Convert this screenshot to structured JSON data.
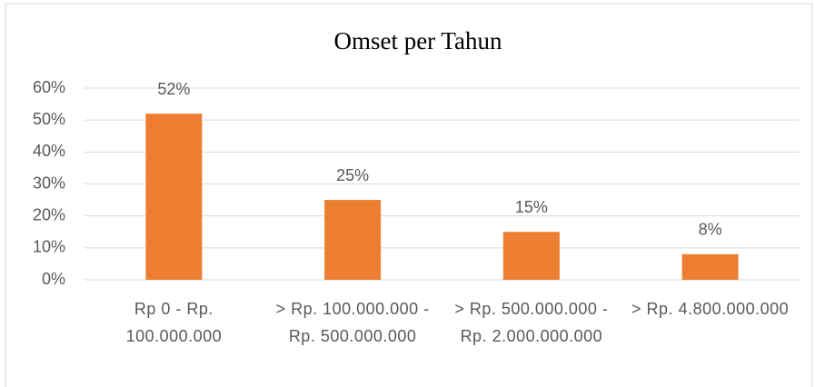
{
  "chart_data": {
    "type": "bar",
    "title": "Omset per Tahun",
    "categories": [
      "Rp 0 - Rp. 100.000.000",
      "> Rp. 100.000.000 - Rp. 500.000.000",
      "> Rp. 500.000.000 - Rp. 2.000.000.000",
      "> Rp. 4.800.000.000"
    ],
    "values": [
      52,
      25,
      15,
      8
    ],
    "value_labels": [
      "52%",
      "25%",
      "15%",
      "8%"
    ],
    "color": "#ed7d31",
    "ylim": [
      0,
      60
    ],
    "yticks": [
      {
        "value": 0,
        "label": "0%"
      },
      {
        "value": 10,
        "label": "10%"
      },
      {
        "value": 20,
        "label": "20%"
      },
      {
        "value": 30,
        "label": "30%"
      },
      {
        "value": 40,
        "label": "40%"
      },
      {
        "value": 50,
        "label": "50%"
      },
      {
        "value": 60,
        "label": "60%"
      }
    ],
    "grid": true
  }
}
